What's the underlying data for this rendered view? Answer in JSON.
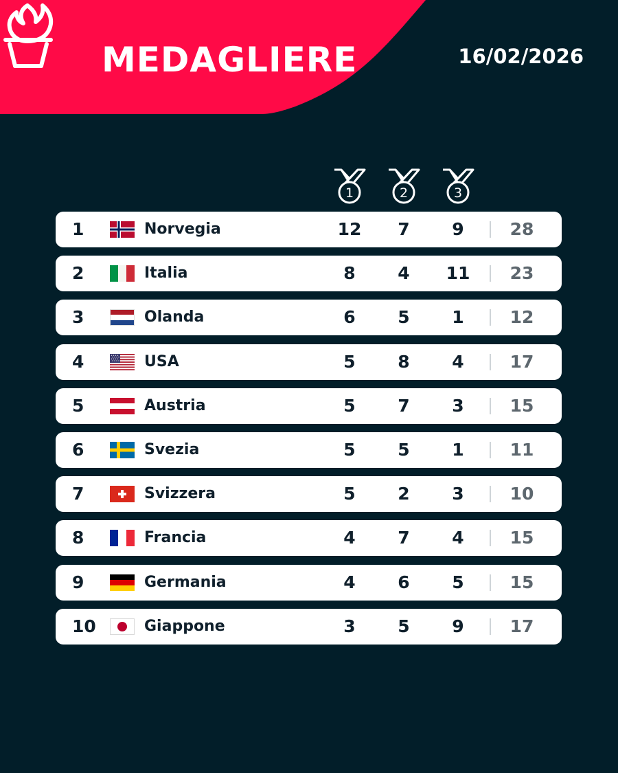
{
  "header": {
    "title": "MEDAGLIERE",
    "date": "16/02/2026",
    "brand_color": "#ff0a47",
    "background_color": "#021e29",
    "logo_icon": "torch-icon"
  },
  "columns": {
    "gold_icon": "medal-1-icon",
    "silver_icon": "medal-2-icon",
    "bronze_icon": "medal-3-icon",
    "gold_label": "1",
    "silver_label": "2",
    "bronze_label": "3"
  },
  "rows": [
    {
      "rank": "1",
      "country": "Norvegia",
      "flag": "norway-flag-icon",
      "gold": "12",
      "silver": "7",
      "bronze": "9",
      "total": "28"
    },
    {
      "rank": "2",
      "country": "Italia",
      "flag": "italy-flag-icon",
      "gold": "8",
      "silver": "4",
      "bronze": "11",
      "total": "23"
    },
    {
      "rank": "3",
      "country": "Olanda",
      "flag": "netherlands-flag-icon",
      "gold": "6",
      "silver": "5",
      "bronze": "1",
      "total": "12"
    },
    {
      "rank": "4",
      "country": "USA",
      "flag": "usa-flag-icon",
      "gold": "5",
      "silver": "8",
      "bronze": "4",
      "total": "17"
    },
    {
      "rank": "5",
      "country": "Austria",
      "flag": "austria-flag-icon",
      "gold": "5",
      "silver": "7",
      "bronze": "3",
      "total": "15"
    },
    {
      "rank": "6",
      "country": "Svezia",
      "flag": "sweden-flag-icon",
      "gold": "5",
      "silver": "5",
      "bronze": "1",
      "total": "11"
    },
    {
      "rank": "7",
      "country": "Svizzera",
      "flag": "switzerland-flag-icon",
      "gold": "5",
      "silver": "2",
      "bronze": "3",
      "total": "10"
    },
    {
      "rank": "8",
      "country": "Francia",
      "flag": "france-flag-icon",
      "gold": "4",
      "silver": "7",
      "bronze": "4",
      "total": "15"
    },
    {
      "rank": "9",
      "country": "Germania",
      "flag": "germany-flag-icon",
      "gold": "4",
      "silver": "6",
      "bronze": "5",
      "total": "15"
    },
    {
      "rank": "10",
      "country": "Giappone",
      "flag": "japan-flag-icon",
      "gold": "3",
      "silver": "5",
      "bronze": "9",
      "total": "17"
    }
  ]
}
